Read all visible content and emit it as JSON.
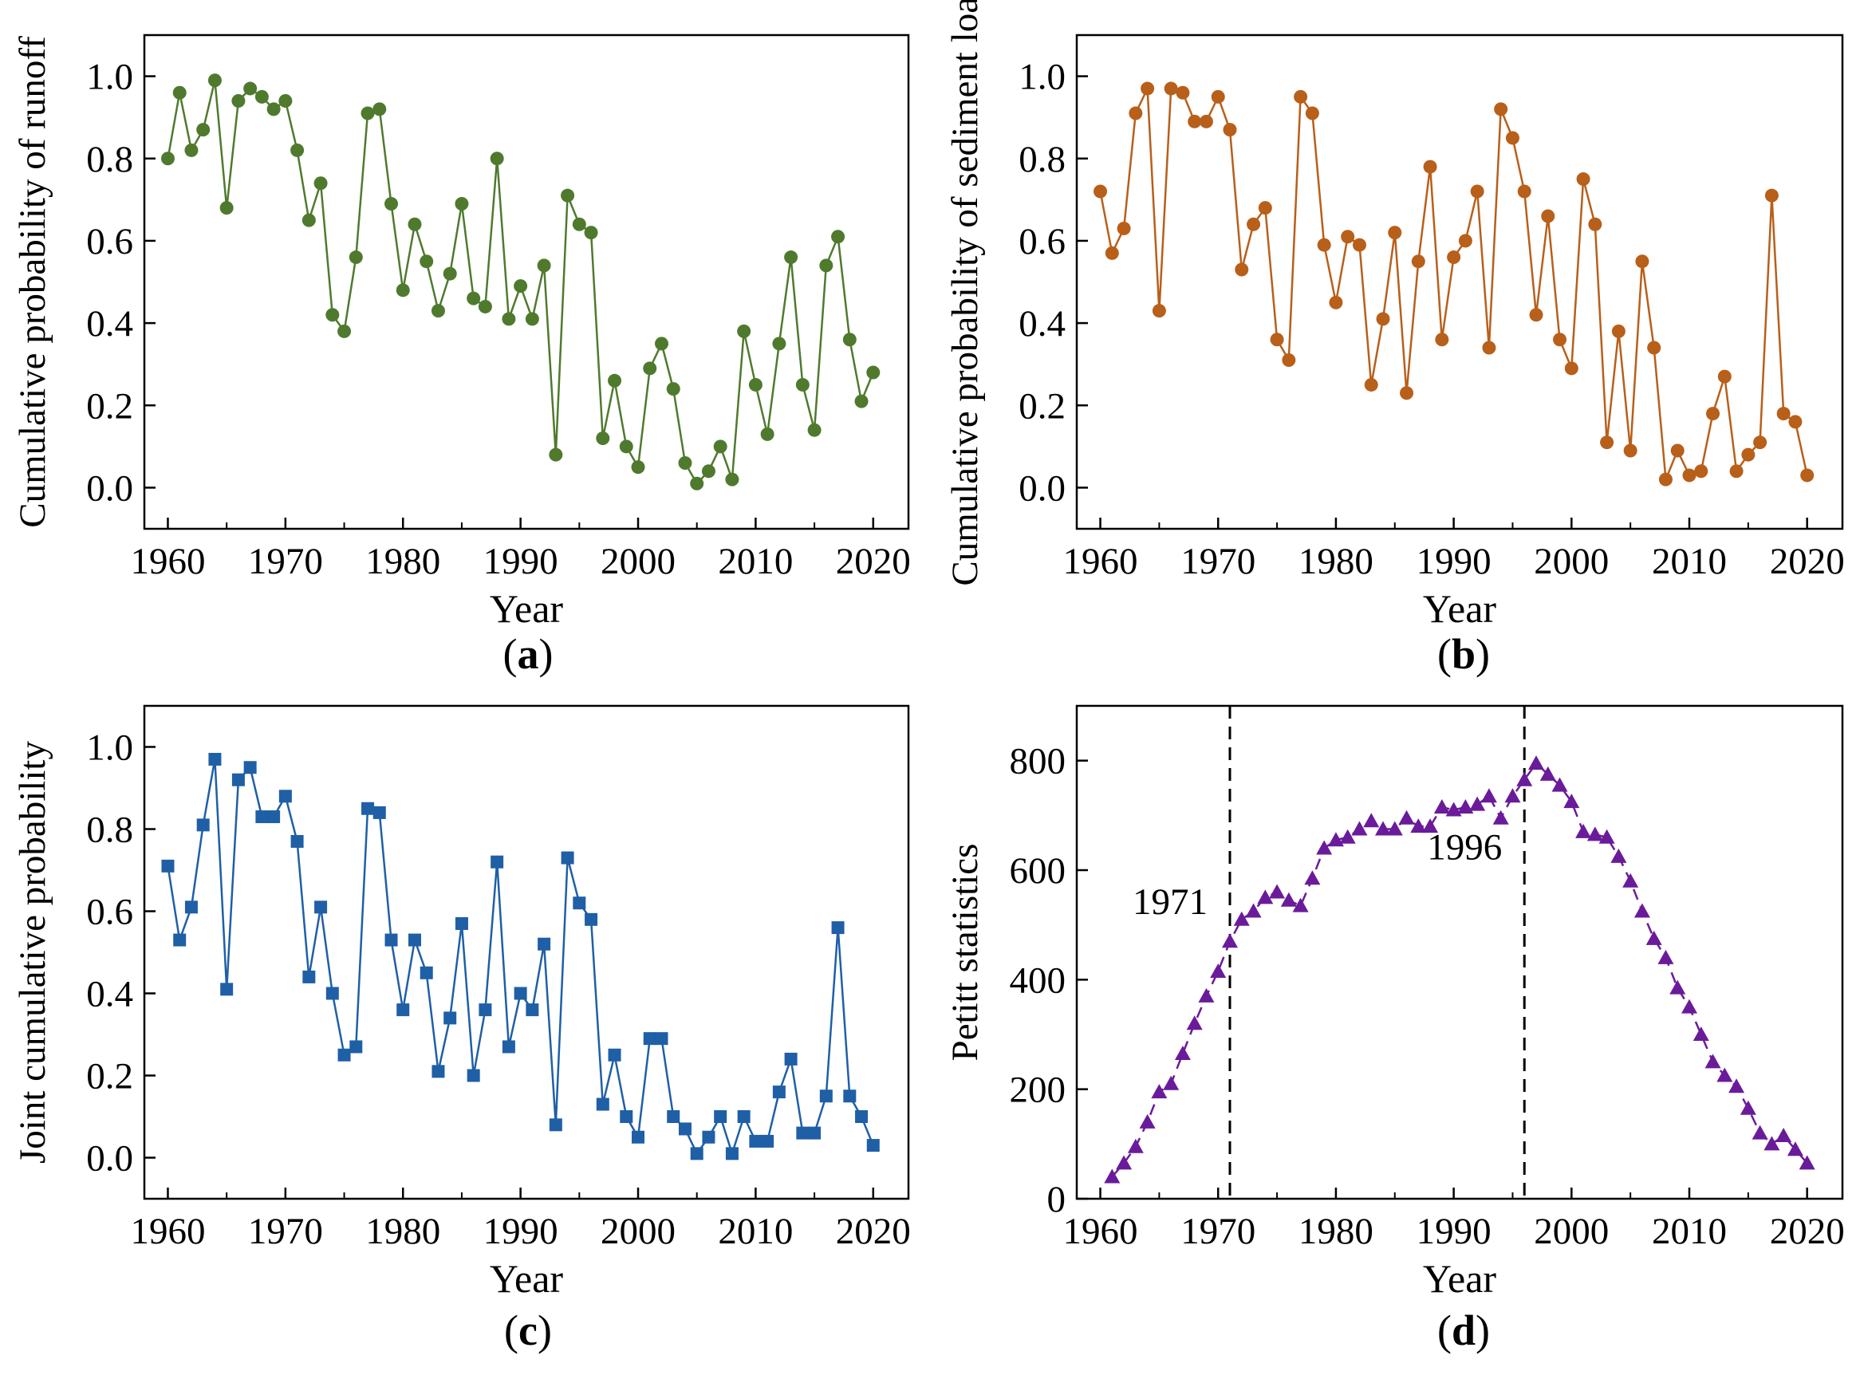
{
  "figure": {
    "captions": [
      {
        "open": "(",
        "letter": "a",
        "close": ")"
      },
      {
        "open": "(",
        "letter": "b",
        "close": ")"
      },
      {
        "open": "(",
        "letter": "c",
        "close": ")"
      },
      {
        "open": "(",
        "letter": "d",
        "close": ")"
      }
    ]
  },
  "chart_data": [
    {
      "type": "line",
      "title": "",
      "xlabel": "Year",
      "ylabel": "Cumulative probability of runoff",
      "xlim": [
        1958,
        2023
      ],
      "ylim": [
        -0.1,
        1.1
      ],
      "xticks": [
        1960,
        1970,
        1980,
        1990,
        2000,
        2010,
        2020
      ],
      "yticks": [
        0.0,
        0.2,
        0.4,
        0.6,
        0.8,
        1.0
      ],
      "ytick_labels": [
        "0.0",
        "0.2",
        "0.4",
        "0.6",
        "0.8",
        "1.0"
      ],
      "marker": "circle",
      "color": "#4f7a2e",
      "series": [
        {
          "name": "Runoff",
          "x": [
            1960,
            1961,
            1962,
            1963,
            1964,
            1965,
            1966,
            1967,
            1968,
            1969,
            1970,
            1971,
            1972,
            1973,
            1974,
            1975,
            1976,
            1977,
            1978,
            1979,
            1980,
            1981,
            1982,
            1983,
            1984,
            1985,
            1986,
            1987,
            1988,
            1989,
            1990,
            1991,
            1992,
            1993,
            1994,
            1995,
            1996,
            1997,
            1998,
            1999,
            2000,
            2001,
            2002,
            2003,
            2004,
            2005,
            2006,
            2007,
            2008,
            2009,
            2010,
            2011,
            2012,
            2013,
            2014,
            2015,
            2016,
            2017,
            2018,
            2019,
            2020
          ],
          "values": [
            0.8,
            0.96,
            0.82,
            0.87,
            0.99,
            0.68,
            0.94,
            0.97,
            0.95,
            0.92,
            0.94,
            0.82,
            0.65,
            0.74,
            0.42,
            0.38,
            0.56,
            0.91,
            0.92,
            0.69,
            0.48,
            0.64,
            0.55,
            0.43,
            0.52,
            0.69,
            0.46,
            0.44,
            0.8,
            0.41,
            0.49,
            0.41,
            0.54,
            0.08,
            0.71,
            0.64,
            0.62,
            0.12,
            0.26,
            0.1,
            0.05,
            0.29,
            0.35,
            0.24,
            0.06,
            0.01,
            0.04,
            0.1,
            0.02,
            0.38,
            0.25,
            0.13,
            0.35,
            0.56,
            0.25,
            0.14,
            0.54,
            0.61,
            0.36,
            0.21,
            0.28
          ]
        }
      ]
    },
    {
      "type": "line",
      "title": "",
      "xlabel": "Year",
      "ylabel": "Cumulative probability of sediment load",
      "xlim": [
        1958,
        2023
      ],
      "ylim": [
        -0.1,
        1.1
      ],
      "xticks": [
        1960,
        1970,
        1980,
        1990,
        2000,
        2010,
        2020
      ],
      "yticks": [
        0.0,
        0.2,
        0.4,
        0.6,
        0.8,
        1.0
      ],
      "ytick_labels": [
        "0.0",
        "0.2",
        "0.4",
        "0.6",
        "0.8",
        "1.0"
      ],
      "marker": "circle",
      "color": "#b85f1a",
      "series": [
        {
          "name": "Sediment load",
          "x": [
            1960,
            1961,
            1962,
            1963,
            1964,
            1965,
            1966,
            1967,
            1968,
            1969,
            1970,
            1971,
            1972,
            1973,
            1974,
            1975,
            1976,
            1977,
            1978,
            1979,
            1980,
            1981,
            1982,
            1983,
            1984,
            1985,
            1986,
            1987,
            1988,
            1989,
            1990,
            1991,
            1992,
            1993,
            1994,
            1995,
            1996,
            1997,
            1998,
            1999,
            2000,
            2001,
            2002,
            2003,
            2004,
            2005,
            2006,
            2007,
            2008,
            2009,
            2010,
            2011,
            2012,
            2013,
            2014,
            2015,
            2016,
            2017,
            2018,
            2019,
            2020
          ],
          "values": [
            0.72,
            0.57,
            0.63,
            0.91,
            0.97,
            0.43,
            0.97,
            0.96,
            0.89,
            0.89,
            0.95,
            0.87,
            0.53,
            0.64,
            0.68,
            0.36,
            0.31,
            0.95,
            0.91,
            0.59,
            0.45,
            0.61,
            0.59,
            0.25,
            0.41,
            0.62,
            0.23,
            0.55,
            0.78,
            0.36,
            0.56,
            0.6,
            0.72,
            0.34,
            0.92,
            0.85,
            0.72,
            0.42,
            0.66,
            0.36,
            0.29,
            0.75,
            0.64,
            0.11,
            0.38,
            0.09,
            0.55,
            0.34,
            0.02,
            0.09,
            0.03,
            0.04,
            0.18,
            0.27,
            0.04,
            0.08,
            0.11,
            0.71,
            0.18,
            0.16,
            0.03
          ]
        }
      ]
    },
    {
      "type": "line",
      "title": "",
      "xlabel": "Year",
      "ylabel": "Joint cumulative probability",
      "xlim": [
        1958,
        2023
      ],
      "ylim": [
        -0.1,
        1.1
      ],
      "xticks": [
        1960,
        1970,
        1980,
        1990,
        2000,
        2010,
        2020
      ],
      "yticks": [
        0.0,
        0.2,
        0.4,
        0.6,
        0.8,
        1.0
      ],
      "ytick_labels": [
        "0.0",
        "0.2",
        "0.4",
        "0.6",
        "0.8",
        "1.0"
      ],
      "marker": "square",
      "color": "#1f5fa6",
      "series": [
        {
          "name": "Joint",
          "x": [
            1960,
            1961,
            1962,
            1963,
            1964,
            1965,
            1966,
            1967,
            1968,
            1969,
            1970,
            1971,
            1972,
            1973,
            1974,
            1975,
            1976,
            1977,
            1978,
            1979,
            1980,
            1981,
            1982,
            1983,
            1984,
            1985,
            1986,
            1987,
            1988,
            1989,
            1990,
            1991,
            1992,
            1993,
            1994,
            1995,
            1996,
            1997,
            1998,
            1999,
            2000,
            2001,
            2002,
            2003,
            2004,
            2005,
            2006,
            2007,
            2008,
            2009,
            2010,
            2011,
            2012,
            2013,
            2014,
            2015,
            2016,
            2017,
            2018,
            2019,
            2020
          ],
          "values": [
            0.71,
            0.53,
            0.61,
            0.81,
            0.97,
            0.41,
            0.92,
            0.95,
            0.83,
            0.83,
            0.88,
            0.77,
            0.44,
            0.61,
            0.4,
            0.25,
            0.27,
            0.85,
            0.84,
            0.53,
            0.36,
            0.53,
            0.45,
            0.21,
            0.34,
            0.57,
            0.2,
            0.36,
            0.72,
            0.27,
            0.4,
            0.36,
            0.52,
            0.08,
            0.73,
            0.62,
            0.58,
            0.13,
            0.25,
            0.1,
            0.05,
            0.29,
            0.29,
            0.1,
            0.07,
            0.01,
            0.05,
            0.1,
            0.01,
            0.1,
            0.04,
            0.04,
            0.16,
            0.24,
            0.06,
            0.06,
            0.15,
            0.56,
            0.15,
            0.1,
            0.03
          ]
        }
      ]
    },
    {
      "type": "line",
      "title": "",
      "xlabel": "Year",
      "ylabel": "Petitt statistics",
      "xlim": [
        1958,
        2023
      ],
      "ylim": [
        0,
        900
      ],
      "xticks": [
        1960,
        1970,
        1980,
        1990,
        2000,
        2010,
        2020
      ],
      "yticks": [
        0,
        200,
        400,
        600,
        800
      ],
      "ytick_labels": [
        "0",
        "200",
        "400",
        "600",
        "800"
      ],
      "marker": "triangle",
      "line_style": "dashed",
      "color": "#6a1b9a",
      "vlines": [
        {
          "x": 1971,
          "label": "1971"
        },
        {
          "x": 1996,
          "label": "1996"
        }
      ],
      "series": [
        {
          "name": "Pettitt",
          "x": [
            1961,
            1962,
            1963,
            1964,
            1965,
            1966,
            1967,
            1968,
            1969,
            1970,
            1971,
            1972,
            1973,
            1974,
            1975,
            1976,
            1977,
            1978,
            1979,
            1980,
            1981,
            1982,
            1983,
            1984,
            1985,
            1986,
            1987,
            1988,
            1989,
            1990,
            1991,
            1992,
            1993,
            1994,
            1995,
            1996,
            1997,
            1998,
            1999,
            2000,
            2001,
            2002,
            2003,
            2004,
            2005,
            2006,
            2007,
            2008,
            2009,
            2010,
            2011,
            2012,
            2013,
            2014,
            2015,
            2016,
            2017,
            2018,
            2019,
            2020
          ],
          "values": [
            40,
            65,
            95,
            140,
            195,
            210,
            265,
            320,
            370,
            415,
            470,
            510,
            525,
            550,
            560,
            545,
            535,
            585,
            640,
            655,
            660,
            675,
            690,
            675,
            675,
            695,
            680,
            680,
            715,
            710,
            715,
            720,
            735,
            695,
            735,
            765,
            795,
            775,
            755,
            725,
            670,
            665,
            660,
            625,
            580,
            525,
            475,
            440,
            385,
            350,
            300,
            250,
            225,
            205,
            165,
            120,
            100,
            115,
            90,
            65
          ]
        }
      ]
    }
  ]
}
